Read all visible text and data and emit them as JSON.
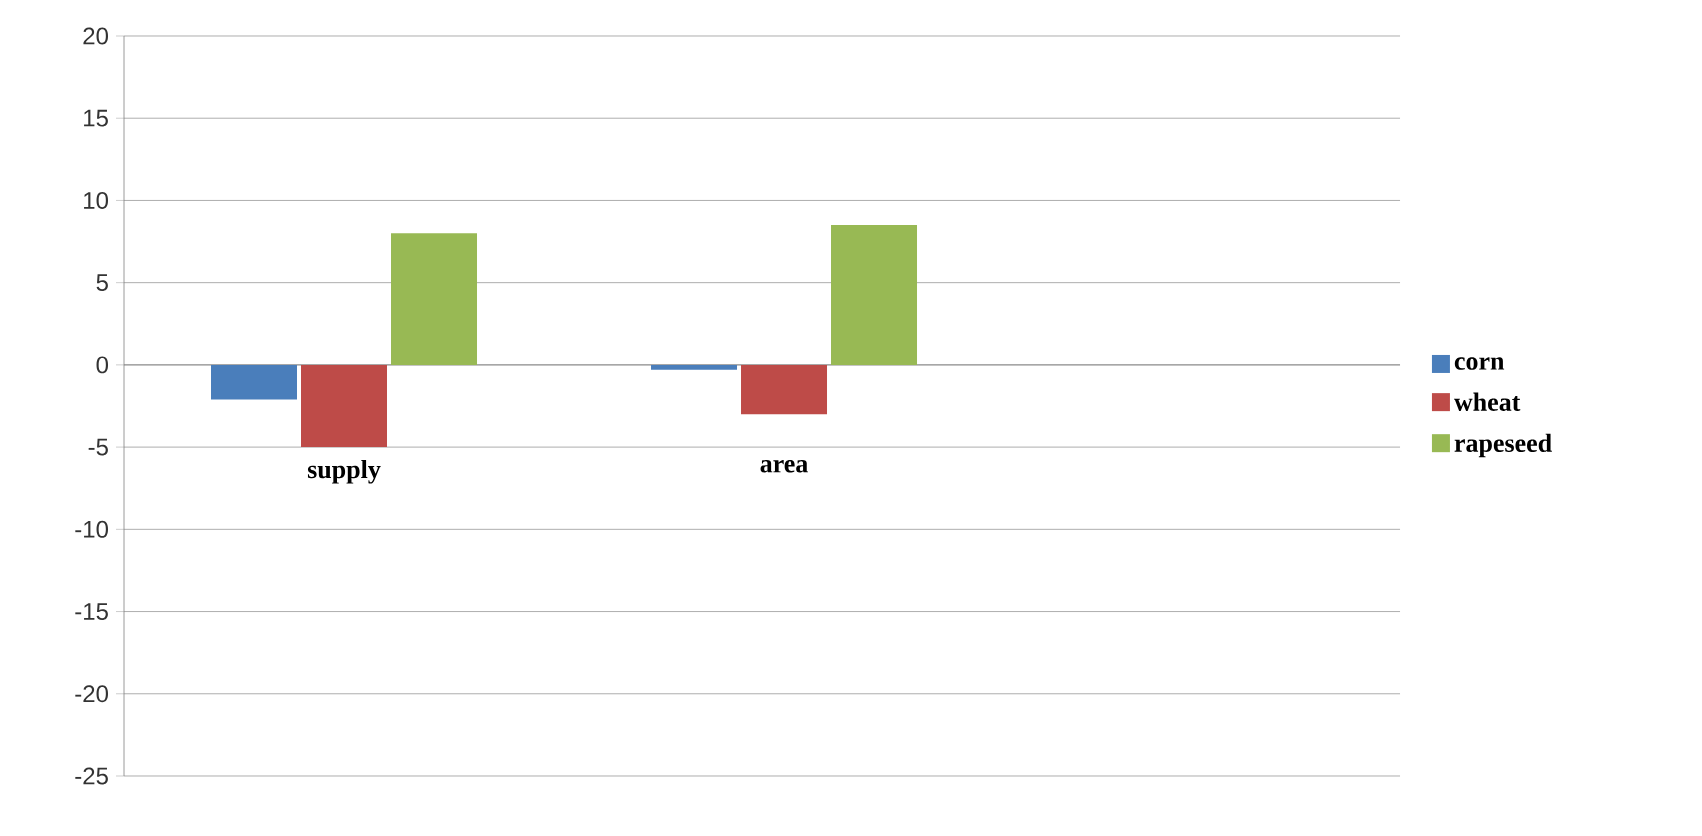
{
  "chart_data": {
    "type": "bar",
    "categories": [
      "supply",
      "area"
    ],
    "series": [
      {
        "name": "corn",
        "color": "#4a7ebb",
        "values": [
          -2.1,
          -0.3
        ]
      },
      {
        "name": "wheat",
        "color": "#be4b48",
        "values": [
          -5,
          -3
        ]
      },
      {
        "name": "rapeseed",
        "color": "#98b954",
        "values": [
          8,
          8.5
        ]
      }
    ],
    "ylim": [
      -25,
      20
    ],
    "yticks": [
      -25,
      -20,
      -15,
      -10,
      -5,
      0,
      5,
      10,
      15,
      20
    ],
    "grid": "y",
    "legend": "right"
  }
}
